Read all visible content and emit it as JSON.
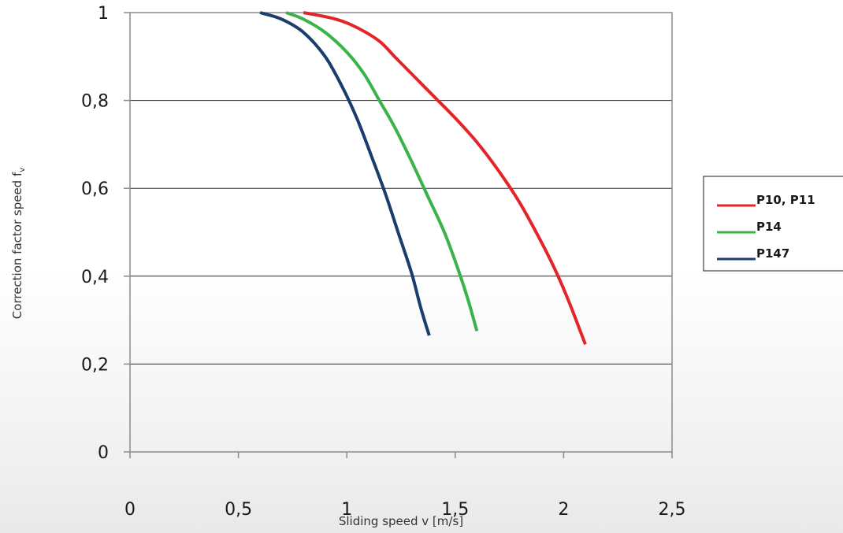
{
  "chart_data": {
    "type": "line",
    "xlabel": "Sliding speed v [m/s]",
    "ylabel": "Correction factor speed f",
    "ylabel_subscript": "v",
    "xlim": [
      0,
      2.5
    ],
    "ylim": [
      0,
      1
    ],
    "x_ticks": [
      "0",
      "0,5",
      "1",
      "1,5",
      "2",
      "2,5"
    ],
    "y_ticks": [
      "0",
      "0,2",
      "0,4",
      "0,6",
      "0,8",
      "1"
    ],
    "x_tick_values": [
      0,
      0.5,
      1,
      1.5,
      2,
      2.5
    ],
    "y_tick_values": [
      0,
      0.2,
      0.4,
      0.6,
      0.8,
      1
    ],
    "grid": "horizontal",
    "legend_position": "right",
    "series": [
      {
        "name": "P10, P11",
        "color": "#e32428",
        "points": [
          [
            0.8,
            1.0
          ],
          [
            0.95,
            0.985
          ],
          [
            1.05,
            0.965
          ],
          [
            1.15,
            0.935
          ],
          [
            1.22,
            0.9
          ],
          [
            1.3,
            0.86
          ],
          [
            1.4,
            0.81
          ],
          [
            1.5,
            0.76
          ],
          [
            1.6,
            0.705
          ],
          [
            1.7,
            0.64
          ],
          [
            1.8,
            0.565
          ],
          [
            1.9,
            0.475
          ],
          [
            1.97,
            0.405
          ],
          [
            2.03,
            0.335
          ],
          [
            2.1,
            0.245
          ]
        ]
      },
      {
        "name": "P14",
        "color": "#3cb34a",
        "points": [
          [
            0.72,
            1.0
          ],
          [
            0.8,
            0.985
          ],
          [
            0.9,
            0.955
          ],
          [
            1.0,
            0.91
          ],
          [
            1.08,
            0.86
          ],
          [
            1.15,
            0.8
          ],
          [
            1.22,
            0.74
          ],
          [
            1.3,
            0.66
          ],
          [
            1.38,
            0.575
          ],
          [
            1.45,
            0.5
          ],
          [
            1.51,
            0.42
          ],
          [
            1.56,
            0.345
          ],
          [
            1.6,
            0.275
          ]
        ]
      },
      {
        "name": "P147",
        "color": "#1a3d6e",
        "points": [
          [
            0.6,
            1.0
          ],
          [
            0.7,
            0.985
          ],
          [
            0.8,
            0.955
          ],
          [
            0.9,
            0.9
          ],
          [
            0.98,
            0.83
          ],
          [
            1.05,
            0.755
          ],
          [
            1.12,
            0.665
          ],
          [
            1.18,
            0.585
          ],
          [
            1.24,
            0.495
          ],
          [
            1.3,
            0.405
          ],
          [
            1.34,
            0.33
          ],
          [
            1.38,
            0.265
          ]
        ]
      }
    ]
  }
}
